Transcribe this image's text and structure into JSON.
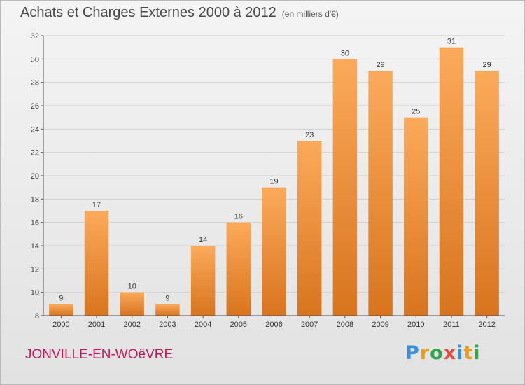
{
  "title": "Achats et Charges Externes 2000 à 2012",
  "subtitle": "(en milliers d'€)",
  "location": "JONVILLE-EN-WOëVRE",
  "brand": {
    "name": "Proxiti",
    "letters": [
      {
        "ch": "P",
        "color": "#3a8fd8"
      },
      {
        "ch": "r",
        "color": "#f39c12"
      },
      {
        "ch": "o",
        "color": "#2aa84a"
      },
      {
        "ch": "x",
        "color": "#e74c3c"
      },
      {
        "ch": "i",
        "color": "#3a8fd8"
      },
      {
        "ch": "t",
        "color": "#f39c12"
      },
      {
        "ch": "i",
        "color": "#2aa84a"
      }
    ]
  },
  "colors": {
    "bar_light": "#fbaa5b",
    "bar_dark": "#d8741e",
    "grid": "#cfcfcf",
    "axis": "#555555",
    "title": "#474747",
    "location": "#c2185b"
  },
  "chart_data": {
    "type": "bar",
    "title": "Achats et Charges Externes 2000 à 2012",
    "subtitle": "(en milliers d'€)",
    "categories": [
      "2000",
      "2001",
      "2002",
      "2003",
      "2004",
      "2005",
      "2006",
      "2007",
      "2008",
      "2009",
      "2010",
      "2011",
      "2012"
    ],
    "values": [
      9,
      17,
      10,
      9,
      14,
      16,
      19,
      23,
      30,
      29,
      25,
      31,
      29
    ],
    "ylim": [
      8,
      32
    ],
    "yticks": [
      8,
      10,
      12,
      14,
      16,
      18,
      20,
      22,
      24,
      26,
      28,
      30,
      32
    ],
    "grid": true,
    "legend": "none",
    "data_labels": true
  }
}
